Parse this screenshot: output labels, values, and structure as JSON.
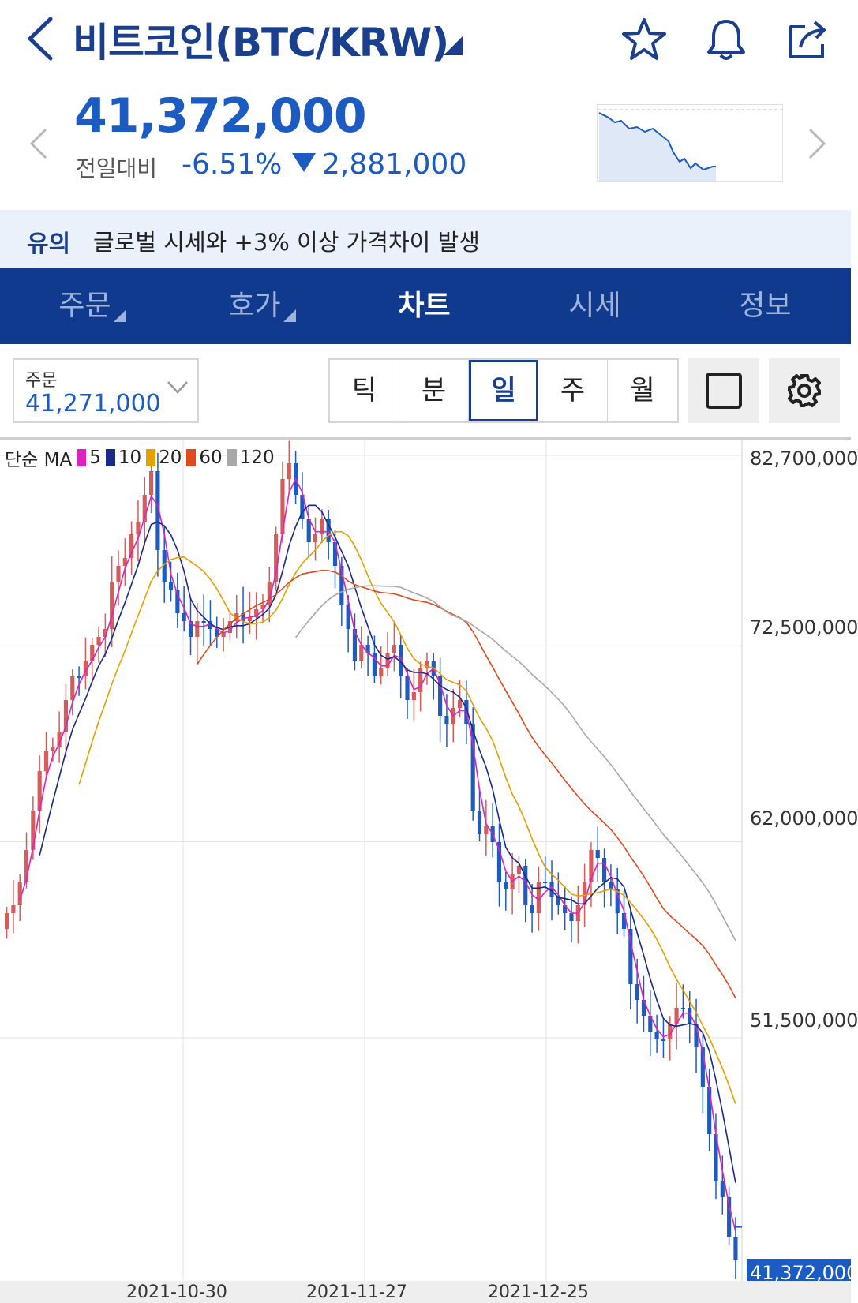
{
  "header": {
    "title": "비트코인(BTC/KRW)",
    "icons": [
      "back-icon",
      "caret-icon",
      "star-icon",
      "bell-icon",
      "share-icon"
    ]
  },
  "price": {
    "current": "41,372,000",
    "change_label": "전일대비",
    "change_pct": "-6.51%",
    "change_abs": "2,881,000"
  },
  "notice": {
    "label": "유의",
    "text": "글로벌 시세와 +3% 이상 가격차이 발생"
  },
  "tabs": [
    {
      "label": "주문",
      "has_corner": true
    },
    {
      "label": "호가",
      "has_corner": true
    },
    {
      "label": "차트",
      "active": true
    },
    {
      "label": "시세"
    },
    {
      "label": "정보"
    }
  ],
  "controls": {
    "order_label": "주문",
    "order_value": "41,271,000",
    "periods": [
      "틱",
      "분",
      "일",
      "주",
      "월"
    ],
    "active_period": "일"
  },
  "chart_data": {
    "type": "candlestick",
    "legend": {
      "prefix": "단순 MA",
      "items": [
        {
          "label": "5",
          "color": "#e020c0"
        },
        {
          "label": "10",
          "color": "#1a2a8c"
        },
        {
          "label": "20",
          "color": "#e6a000"
        },
        {
          "label": "60",
          "color": "#e04a1c"
        },
        {
          "label": "120",
          "color": "#a8a8a8"
        }
      ]
    },
    "y_ticks": [
      "82,700,000",
      "72,500,000",
      "62,000,000",
      "51,500,000"
    ],
    "y_tick_values": [
      82700000,
      72500000,
      62000000,
      51500000
    ],
    "x_ticks": [
      "2021-10-30",
      "2021-11-27",
      "2021-12-25"
    ],
    "last_price_label": "41,372,000",
    "last_price": 41372000,
    "colors": {
      "up": "#d65c5c",
      "down": "#1c5cc2"
    }
  }
}
